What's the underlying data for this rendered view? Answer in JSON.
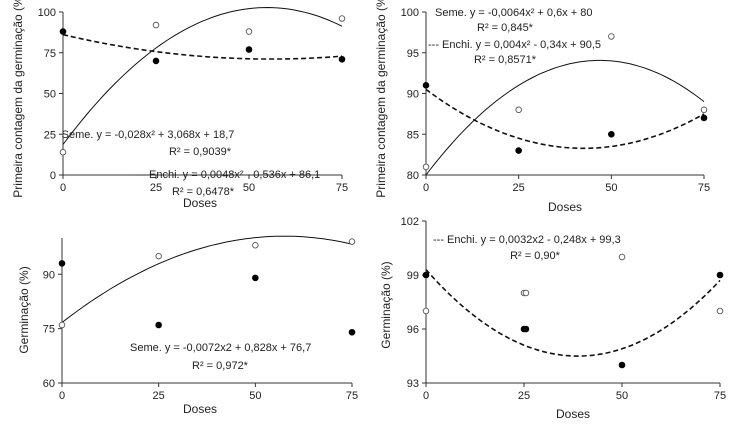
{
  "chart_data": [
    {
      "type": "scatter",
      "ylabel": "Primeira contagem da germinação (%)",
      "xlabel": "Doses",
      "xlim": [
        0,
        75
      ],
      "ylim": [
        0,
        100
      ],
      "xticks": [
        0,
        25,
        50,
        75
      ],
      "xtick_labels": [
        "0",
        "25",
        "50",
        "75"
      ],
      "yticks": [
        0,
        25,
        50,
        75,
        100
      ],
      "ytick_labels": [
        "0",
        "25",
        "50",
        "75",
        "100"
      ],
      "series": [
        {
          "key": "seme",
          "marker": "open",
          "line": "solid",
          "x": [
            0,
            25,
            50,
            75
          ],
          "y": [
            14,
            92,
            88,
            96
          ],
          "coef": [
            -0.028,
            3.068,
            18.7
          ]
        },
        {
          "key": "enchi",
          "marker": "filled",
          "line": "dashed",
          "x": [
            0,
            25,
            50,
            75
          ],
          "y": [
            88,
            70,
            77,
            71
          ],
          "coef": [
            0.0048,
            -0.536,
            86.1
          ]
        }
      ],
      "annotations": [
        "Seme. y = -0,028x² + 3,068x + 18,7",
        "R² = 0,9039*",
        "--- Enchi. y = 0,0048x² - 0,536x + 86,1",
        "R² = 0,6478*"
      ]
    },
    {
      "type": "scatter",
      "ylabel": "Primeira contagem da germinação (%)",
      "xlabel": "Doses",
      "xlim": [
        0,
        75
      ],
      "ylim": [
        80,
        100
      ],
      "xticks": [
        0,
        25,
        50,
        75
      ],
      "xtick_labels": [
        "0",
        "25",
        "50",
        "75"
      ],
      "yticks": [
        80,
        85,
        90,
        95,
        100
      ],
      "ytick_labels": [
        "80",
        "85",
        "90",
        "95",
        "100"
      ],
      "series": [
        {
          "key": "seme",
          "marker": "open",
          "line": "solid",
          "x": [
            0,
            25,
            50,
            75
          ],
          "y": [
            81,
            88,
            97,
            88
          ],
          "coef": [
            -0.0064,
            0.6,
            80
          ]
        },
        {
          "key": "enchi",
          "marker": "filled",
          "line": "dashed",
          "x": [
            0,
            25,
            50,
            75
          ],
          "y": [
            91,
            83,
            85,
            87
          ],
          "coef": [
            0.004,
            -0.34,
            90.5
          ]
        }
      ],
      "annotations": [
        "Seme. y = -0,0064x² + 0,6x + 80",
        "R² = 0,845*",
        "--- Enchi. y = 0,004x² - 0,34x + 90,5",
        "R² = 0,8571*"
      ]
    },
    {
      "type": "scatter",
      "ylabel": "Germinação (%)",
      "xlabel": "Doses",
      "xlim": [
        0,
        75
      ],
      "ylim": [
        60,
        100
      ],
      "xticks": [
        0,
        25,
        50,
        75
      ],
      "xtick_labels": [
        "0",
        "25",
        "50",
        "75"
      ],
      "yticks": [
        60,
        75,
        90
      ],
      "ytick_labels": [
        "60",
        "75",
        "90"
      ],
      "series": [
        {
          "key": "seme",
          "marker": "open",
          "line": "solid",
          "x": [
            0,
            25,
            50,
            75
          ],
          "y": [
            76,
            95,
            98,
            99
          ],
          "coef": [
            -0.0072,
            0.828,
            76.7
          ]
        },
        {
          "key": "enchi",
          "marker": "filled",
          "line": "none",
          "x": [
            0,
            25,
            50,
            75
          ],
          "y": [
            93,
            76,
            89,
            74
          ]
        }
      ],
      "annotations": [
        "Seme. y = -0,0072x2 + 0,828x + 76,7",
        "R² = 0,972*"
      ]
    },
    {
      "type": "scatter",
      "ylabel": "Germinação (%)",
      "xlabel": "Doses",
      "xlim": [
        0,
        75
      ],
      "ylim": [
        93,
        102
      ],
      "xticks": [
        0,
        25,
        50,
        75
      ],
      "xtick_labels": [
        "0",
        "25",
        "50",
        "75"
      ],
      "yticks": [
        93,
        96,
        99,
        102
      ],
      "ytick_labels": [
        "93",
        "96",
        "99",
        "102"
      ],
      "series": [
        {
          "key": "seme",
          "marker": "open",
          "line": "none",
          "x": [
            0,
            25,
            25.5,
            50,
            75
          ],
          "y": [
            97,
            98,
            98,
            100,
            97
          ]
        },
        {
          "key": "enchi",
          "marker": "filled",
          "line": "dashed",
          "x": [
            0,
            25,
            25.5,
            50,
            75
          ],
          "y": [
            99,
            96,
            96,
            94,
            99
          ],
          "coef": [
            0.0032,
            -0.248,
            99.3
          ]
        }
      ],
      "annotations": [
        "--- Enchi. y = 0,0032x2 - 0,248x + 99,3",
        "R² = 0,90*"
      ]
    }
  ]
}
